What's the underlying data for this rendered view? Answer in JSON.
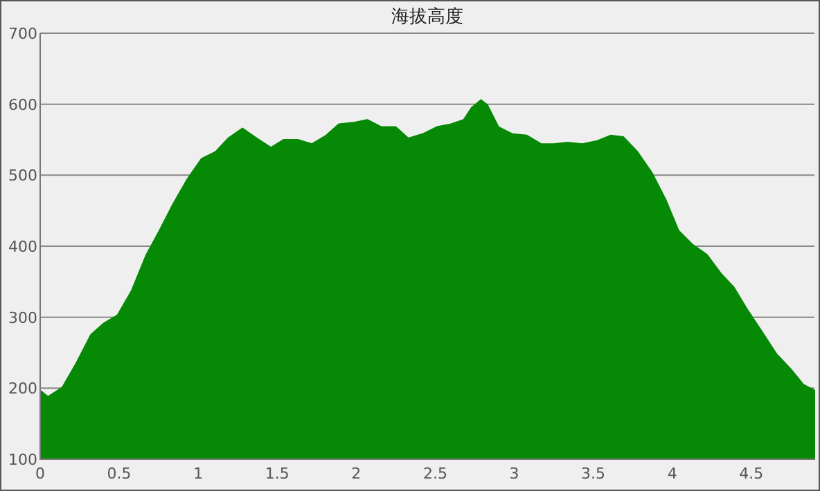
{
  "chart_data": {
    "type": "area",
    "title": "海拔高度",
    "x": [
      0,
      0.05,
      0.14,
      0.23,
      0.32,
      0.4,
      0.49,
      0.58,
      0.67,
      0.75,
      0.84,
      0.93,
      1.02,
      1.11,
      1.19,
      1.28,
      1.37,
      1.46,
      1.54,
      1.63,
      1.72,
      1.81,
      1.89,
      1.98,
      2.07,
      2.16,
      2.25,
      2.33,
      2.42,
      2.51,
      2.6,
      2.68,
      2.73,
      2.79,
      2.83,
      2.9,
      2.99,
      3.08,
      3.17,
      3.25,
      3.34,
      3.43,
      3.52,
      3.61,
      3.69,
      3.78,
      3.87,
      3.96,
      4.04,
      4.13,
      4.22,
      4.31,
      4.39,
      4.48,
      4.57,
      4.66,
      4.75,
      4.83,
      4.9
    ],
    "series": [
      {
        "color": "#068a06",
        "values": [
          197,
          188,
          201,
          236,
          275,
          291,
          303,
          338,
          387,
          420,
          459,
          494,
          523,
          533,
          552,
          566,
          552,
          539,
          550,
          550,
          544,
          556,
          572,
          574,
          578,
          568,
          568,
          552,
          558,
          568,
          572,
          578,
          595,
          606,
          599,
          568,
          558,
          556,
          544,
          544,
          546,
          544,
          548,
          556,
          554,
          533,
          504,
          465,
          422,
          402,
          388,
          361,
          342,
          309,
          279,
          248,
          227,
          205,
          197
        ]
      }
    ],
    "xlim": [
      0,
      4.9
    ],
    "ylim": [
      100,
      700
    ],
    "xticks": [
      0,
      0.5,
      1,
      1.5,
      2,
      2.5,
      3,
      3.5,
      4,
      4.5
    ],
    "yticks": [
      100,
      200,
      300,
      400,
      500,
      600,
      700
    ],
    "grid": "y"
  }
}
